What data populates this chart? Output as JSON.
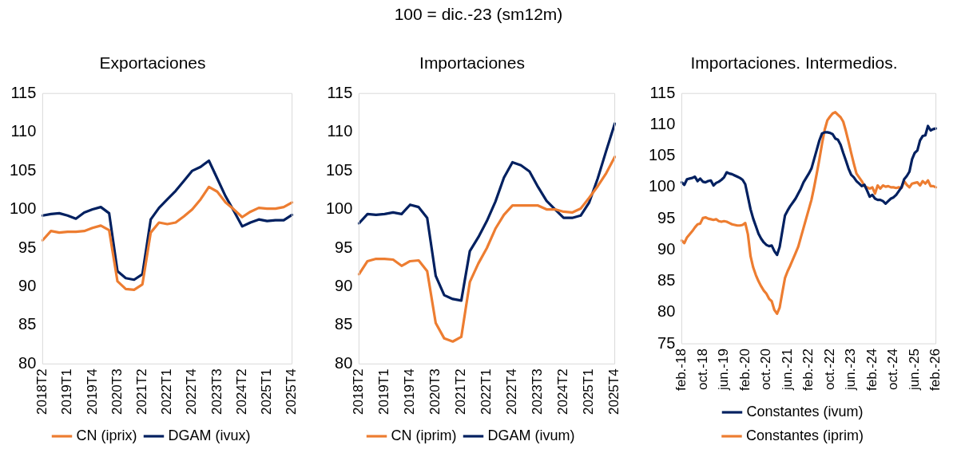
{
  "chart_data": [
    {
      "type": "line",
      "title": "Exportaciones",
      "annotations": [
        "100 = dic.-23 (sm12m)"
      ],
      "categories": [
        "2018T2",
        null,
        null,
        "2019T1",
        null,
        null,
        "2019T4",
        null,
        null,
        "2020T3",
        null,
        null,
        "2021T2",
        null,
        null,
        "2022T1",
        null,
        null,
        "2022T4",
        null,
        null,
        "2023T3",
        null,
        null,
        "2024T2",
        null,
        null,
        "2025T1",
        null,
        null,
        "2025T4"
      ],
      "series": [
        {
          "name": "CN (iprix)",
          "color": "#ed7d31",
          "values": [
            96,
            97.2,
            97,
            97.1,
            97.1,
            97.2,
            97.6,
            97.9,
            97.3,
            90.7,
            89.7,
            89.6,
            90.3,
            97,
            98.3,
            98.1,
            98.3,
            99.1,
            100,
            101.3,
            102.9,
            102.3,
            100.9,
            100,
            99,
            99.7,
            100.2,
            100.1,
            100.1,
            100.3,
            100.9
          ]
        },
        {
          "name": "DGAM (ivux)",
          "color": "#002060",
          "values": [
            99.2,
            99.4,
            99.5,
            99.2,
            98.8,
            99.6,
            100,
            100.3,
            99.5,
            92,
            91.1,
            90.9,
            91.6,
            98.7,
            100.2,
            101.3,
            102.4,
            103.7,
            105,
            105.5,
            106.3,
            104,
            101.7,
            99.8,
            97.8,
            98.3,
            98.7,
            98.5,
            98.6,
            98.6,
            99.3
          ]
        }
      ],
      "ylim": [
        80,
        115
      ],
      "yticks": [
        80,
        85,
        90,
        95,
        100,
        105,
        110,
        115
      ],
      "grid": false,
      "legend": "bottom",
      "marker": "none",
      "line_style": "solid"
    },
    {
      "type": "line",
      "title": "Importaciones",
      "categories": [
        "2018T2",
        null,
        null,
        "2019T1",
        null,
        null,
        "2019T4",
        null,
        null,
        "2020T3",
        null,
        null,
        "2021T2",
        null,
        null,
        "2022T1",
        null,
        null,
        "2022T4",
        null,
        null,
        "2023T3",
        null,
        null,
        "2024T2",
        null,
        null,
        "2025T1",
        null,
        null,
        "2025T4"
      ],
      "series": [
        {
          "name": "CN (iprim)",
          "color": "#ed7d31",
          "values": [
            91.6,
            93.3,
            93.6,
            93.6,
            93.5,
            92.7,
            93.3,
            93.4,
            92,
            85.3,
            83.3,
            82.9,
            83.5,
            90.6,
            93,
            95,
            97.5,
            99.3,
            100.5,
            100.5,
            100.5,
            100.5,
            100,
            100,
            99.7,
            99.6,
            100.1,
            101.5,
            103,
            104.7,
            106.8
          ]
        },
        {
          "name": "DGAM (ivum)",
          "color": "#002060",
          "values": [
            98.2,
            99.4,
            99.3,
            99.4,
            99.6,
            99.4,
            100.6,
            100.3,
            98.9,
            91.4,
            88.9,
            88.4,
            88.2,
            94.6,
            96.4,
            98.5,
            101,
            104.1,
            106.1,
            105.7,
            104.9,
            102.9,
            101.1,
            100,
            98.9,
            98.9,
            99.2,
            100.9,
            104,
            107.6,
            111.1
          ]
        }
      ],
      "ylim": [
        80,
        115
      ],
      "yticks": [
        80,
        85,
        90,
        95,
        100,
        105,
        110,
        115
      ],
      "grid": false,
      "legend": "bottom",
      "marker": "none",
      "line_style": "solid"
    },
    {
      "type": "line",
      "title": "Importaciones. Intermedios.",
      "categories": [
        "feb.-18",
        null,
        null,
        null,
        null,
        null,
        null,
        null,
        "oct.-18",
        null,
        null,
        null,
        null,
        null,
        null,
        null,
        "jun.-19",
        null,
        null,
        null,
        null,
        null,
        null,
        null,
        "feb.-20",
        null,
        null,
        null,
        null,
        null,
        null,
        null,
        "oct.-20",
        null,
        null,
        null,
        null,
        null,
        null,
        null,
        "jun.-21",
        null,
        null,
        null,
        null,
        null,
        null,
        null,
        "feb.-22",
        null,
        null,
        null,
        null,
        null,
        null,
        null,
        "oct.-22",
        null,
        null,
        null,
        null,
        null,
        null,
        null,
        "jun.-23",
        null,
        null,
        null,
        null,
        null,
        null,
        null,
        "feb.-24",
        null,
        null,
        null,
        null,
        null,
        null,
        null,
        "oct.-24",
        null,
        null,
        null,
        null,
        null,
        null,
        null,
        "jun.-25",
        null,
        null,
        null,
        null,
        null,
        null,
        null,
        "feb.-26"
      ],
      "series": [
        {
          "name": "Constantes (ivum)",
          "color": "#002060",
          "values": [
            100.8,
            100.4,
            101.3,
            101.4,
            101.5,
            101.7,
            101,
            101.4,
            100.9,
            100.8,
            101,
            101.1,
            100.3,
            100.7,
            100.9,
            101.2,
            101.6,
            102.4,
            102.2,
            102.1,
            101.9,
            101.7,
            101.5,
            101.2,
            100.5,
            98.5,
            96.5,
            95,
            93.8,
            92.6,
            91.8,
            91.2,
            90.8,
            90.6,
            90.7,
            89.8,
            89.2,
            90.5,
            93,
            95.5,
            96.3,
            97,
            97.6,
            98.2,
            99,
            99.8,
            100.8,
            101.5,
            102.2,
            103,
            104.5,
            106,
            107.5,
            108.6,
            108.8,
            108.8,
            108.7,
            108.5,
            107.8,
            107.6,
            106.8,
            105.5,
            104.3,
            103,
            102,
            101.6,
            101,
            100.6,
            100.2,
            100.4,
            99.5,
            98.5,
            98.8,
            98.2,
            98,
            98,
            97.8,
            97.4,
            97.8,
            98.2,
            98.4,
            98.8,
            99.4,
            100,
            101.3,
            101.8,
            102.5,
            104.5,
            105.5,
            105.9,
            107.5,
            108.2,
            108.3,
            109.8,
            109.1,
            109.3,
            109.4
          ]
        },
        {
          "name": "Constantes (iprim)",
          "color": "#ed7d31",
          "values": [
            91.5,
            91.1,
            92,
            92.5,
            93,
            93.6,
            94.1,
            94.2,
            95.1,
            95.2,
            95,
            94.9,
            94.8,
            94.9,
            94.6,
            94.5,
            94.6,
            94.5,
            94.3,
            94.1,
            94,
            93.9,
            93.9,
            94,
            94.3,
            92.5,
            89,
            87.2,
            86,
            85,
            84.2,
            83.5,
            83,
            82.2,
            81.8,
            80.4,
            79.8,
            80.8,
            83.2,
            85.5,
            86.6,
            87.5,
            88.5,
            89.5,
            90.5,
            92,
            93.5,
            95,
            96.5,
            98,
            100,
            102.2,
            104.5,
            107,
            109.2,
            110.7,
            111.3,
            111.8,
            112,
            111.6,
            111.2,
            110.5,
            109,
            107.3,
            105.5,
            103.8,
            102.2,
            101.6,
            101,
            100.2,
            100,
            99.8,
            100,
            99,
            100.3,
            99.8,
            100.3,
            100.1,
            100.2,
            100,
            100,
            99.9,
            100,
            99.9,
            101,
            100.4,
            100,
            100.6,
            100.7,
            100.8,
            100.3,
            101,
            100.6,
            101.1,
            100.2,
            100.2,
            100
          ]
        }
      ],
      "ylim": [
        75,
        115
      ],
      "yticks": [
        75,
        80,
        85,
        90,
        95,
        100,
        105,
        110,
        115
      ],
      "grid": false,
      "legend": "bottom",
      "marker": "none",
      "line_style": "solid"
    }
  ]
}
